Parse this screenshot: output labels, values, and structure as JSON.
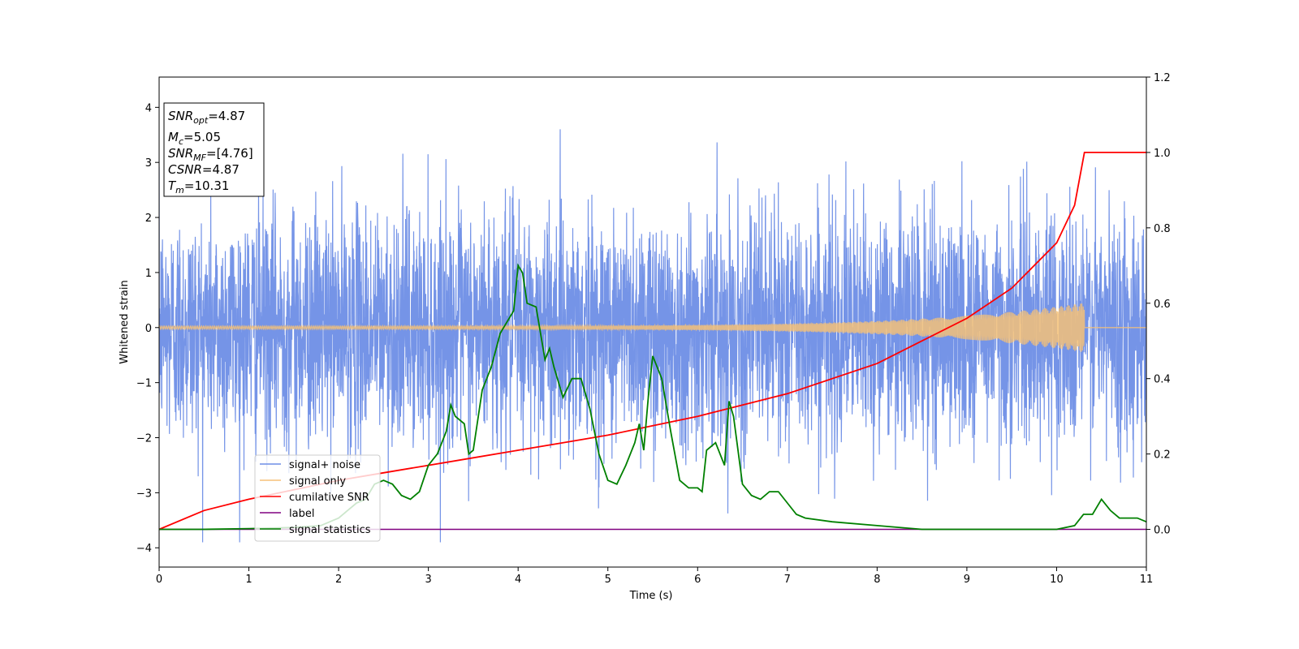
{
  "chart_data": {
    "type": "line",
    "xlabel": "Time (s)",
    "ylabel": "Whitened strain",
    "xlim": [
      0,
      11
    ],
    "ylim": [
      -4.35,
      4.55
    ],
    "y2lim": [
      -0.1,
      1.2
    ],
    "x_ticks": [
      "0",
      "1",
      "2",
      "3",
      "4",
      "5",
      "6",
      "7",
      "8",
      "9",
      "10",
      "11"
    ],
    "y_ticks": [
      "−4",
      "−3",
      "−2",
      "−1",
      "0",
      "1",
      "2",
      "3",
      "4"
    ],
    "y2_ticks": [
      "0.0",
      "0.2",
      "0.4",
      "0.6",
      "0.8",
      "1.0",
      "1.2"
    ],
    "grid": false,
    "legend_position": "bottom-left",
    "info_box": {
      "snr_opt_main": "SNR",
      "snr_opt_sub": "opt",
      "snr_opt_val": "=4.87",
      "mc_main": "M",
      "mc_sub": "c",
      "mc_val": "=5.05",
      "snr_mf_main": "SNR",
      "snr_mf_sub": "MF",
      "snr_mf_val": "=[4.76]",
      "csnr_main": "CSNR",
      "csnr_val": "=4.87",
      "tm_main": "T",
      "tm_sub": "m",
      "tm_val": "=10.31"
    },
    "series": [
      {
        "name": "signal+ noise",
        "color": "#6e8ee6",
        "axis": "left",
        "description_note": "dense noise; values sampled",
        "noise_sigma": 1.0,
        "x_range": [
          0,
          11
        ]
      },
      {
        "name": "signal only",
        "color": "#f5c178",
        "axis": "left",
        "merger_time": 10.31,
        "amplitude_start": 0.03,
        "amplitude_end": 0.45
      },
      {
        "name": "cumilative SNR",
        "color": "#ff0000",
        "axis": "right",
        "x": [
          0,
          0.5,
          1,
          1.5,
          2,
          2.5,
          3,
          3.5,
          4,
          4.5,
          5,
          5.5,
          6,
          6.5,
          7,
          7.5,
          8,
          8.5,
          9,
          9.5,
          10,
          10.2,
          10.31,
          11
        ],
        "y": [
          0.0,
          0.05,
          0.08,
          0.105,
          0.13,
          0.15,
          0.17,
          0.19,
          0.21,
          0.23,
          0.25,
          0.275,
          0.3,
          0.33,
          0.36,
          0.4,
          0.44,
          0.5,
          0.56,
          0.64,
          0.76,
          0.86,
          1.0,
          1.0
        ]
      },
      {
        "name": "label",
        "color": "#800080",
        "axis": "right",
        "x": [
          0,
          11
        ],
        "y": [
          0.0,
          0.0
        ]
      },
      {
        "name": "signal statistics",
        "color": "#008000",
        "axis": "right",
        "x": [
          0,
          0.5,
          1,
          1.5,
          1.8,
          2.0,
          2.1,
          2.2,
          2.3,
          2.4,
          2.5,
          2.6,
          2.7,
          2.8,
          2.9,
          3.0,
          3.1,
          3.2,
          3.25,
          3.3,
          3.4,
          3.45,
          3.5,
          3.6,
          3.7,
          3.8,
          3.9,
          3.95,
          4.0,
          4.05,
          4.1,
          4.2,
          4.3,
          4.35,
          4.4,
          4.5,
          4.6,
          4.7,
          4.8,
          4.9,
          5.0,
          5.1,
          5.2,
          5.3,
          5.35,
          5.4,
          5.45,
          5.5,
          5.6,
          5.7,
          5.8,
          5.9,
          6.0,
          6.05,
          6.1,
          6.2,
          6.3,
          6.35,
          6.4,
          6.5,
          6.6,
          6.7,
          6.8,
          6.9,
          7.0,
          7.1,
          7.2,
          7.5,
          8.0,
          8.5,
          9.0,
          9.5,
          10.0,
          10.2,
          10.3,
          10.4,
          10.5,
          10.6,
          10.7,
          10.8,
          10.9,
          11.0
        ],
        "y": [
          0.0,
          0.0,
          0.002,
          0.005,
          0.01,
          0.03,
          0.05,
          0.07,
          0.08,
          0.12,
          0.13,
          0.12,
          0.09,
          0.08,
          0.1,
          0.17,
          0.2,
          0.26,
          0.33,
          0.3,
          0.28,
          0.2,
          0.21,
          0.37,
          0.43,
          0.52,
          0.56,
          0.58,
          0.7,
          0.68,
          0.6,
          0.59,
          0.45,
          0.48,
          0.43,
          0.35,
          0.4,
          0.4,
          0.32,
          0.2,
          0.13,
          0.12,
          0.17,
          0.23,
          0.28,
          0.21,
          0.35,
          0.46,
          0.4,
          0.26,
          0.13,
          0.11,
          0.11,
          0.1,
          0.21,
          0.23,
          0.17,
          0.34,
          0.3,
          0.12,
          0.09,
          0.08,
          0.1,
          0.1,
          0.07,
          0.04,
          0.03,
          0.02,
          0.01,
          0.0,
          0.0,
          0.0,
          0.0,
          0.01,
          0.04,
          0.04,
          0.08,
          0.05,
          0.03,
          0.03,
          0.03,
          0.02
        ]
      }
    ]
  }
}
